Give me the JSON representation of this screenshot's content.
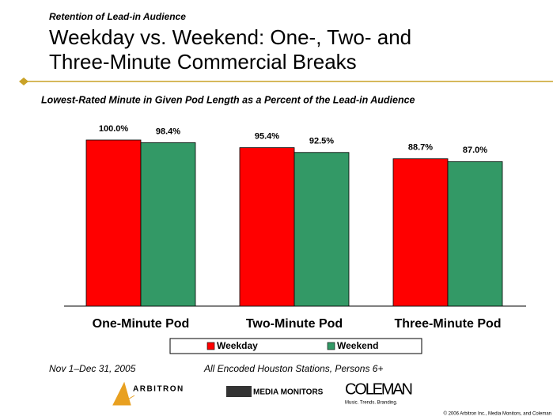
{
  "chart_data": {
    "type": "bar",
    "kicker": "Retention of Lead-in Audience",
    "title_lines": [
      "Weekday vs. Weekend:  One-, Two- and",
      "Three-Minute Commercial Breaks"
    ],
    "subtitle": "Lowest-Rated Minute in Given Pod Length as a Percent of the Lead-in Audience",
    "categories": [
      "One-Minute Pod",
      "Two-Minute Pod",
      "Three-Minute Pod"
    ],
    "series": [
      {
        "name": "Weekday",
        "color": "#ff0000",
        "values": [
          100.0,
          95.4,
          88.7
        ],
        "value_labels": [
          "100.0%",
          "95.4%",
          "88.7%"
        ]
      },
      {
        "name": "Weekend",
        "color": "#339966",
        "values": [
          98.4,
          92.5,
          87.0
        ],
        "value_labels": [
          "98.4%",
          "92.5%",
          "87.0%"
        ]
      }
    ],
    "footer_left": "Nov 1–Dec 31, 2005",
    "footer_right": "All Encoded Houston Stations, Persons 6+",
    "logos": [
      "ARBITRON",
      "MEDIA MONITORS",
      "COLEMAN"
    ],
    "logo_tagline": "Music. Trends. Branding.",
    "copyright": "© 2006 Arbitron Inc., Media Monitors, and Coleman"
  }
}
